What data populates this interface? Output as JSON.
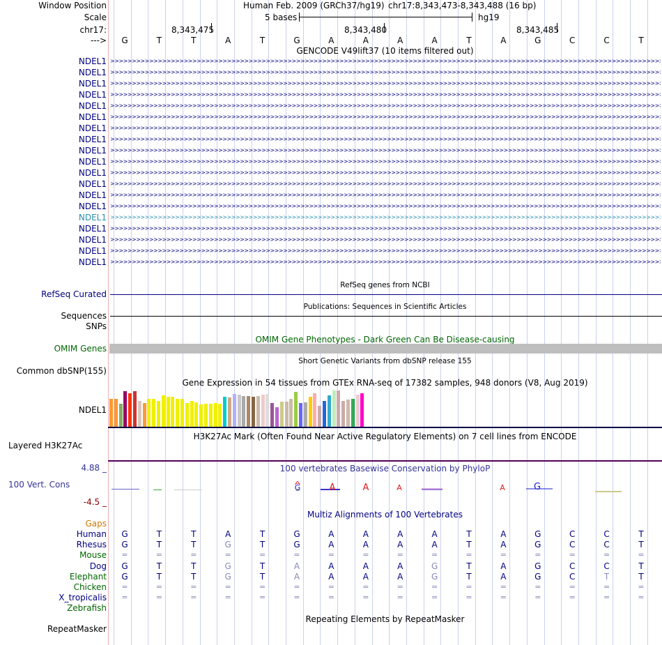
{
  "header": {
    "window_position_label": "Window Position",
    "assembly_text": "Human Feb. 2009 (GRCh37/hg19)",
    "position_text": "chr17:8,343,473-8,343,488 (16 bp)",
    "scale_label": "Scale",
    "scale_text": "5 bases",
    "scale_db": "hg19",
    "chrom_label": "chr17:",
    "strand_label": "--->",
    "ruler_ticks": [
      "8,343,475",
      "8,343,480",
      "8,343,485"
    ]
  },
  "sequence": [
    "G",
    "T",
    "T",
    "A",
    "T",
    "G",
    "A",
    "A",
    "A",
    "A",
    "T",
    "A",
    "G",
    "C",
    "C",
    "T"
  ],
  "gencode": {
    "title": "GENCODE V49lift37 (10 items filtered out)",
    "genes": [
      "NDEL1",
      "NDEL1",
      "NDEL1",
      "NDEL1",
      "NDEL1",
      "NDEL1",
      "NDEL1",
      "NDEL1",
      "NDEL1",
      "NDEL1",
      "NDEL1",
      "NDEL1",
      "NDEL1",
      "NDEL1",
      "NDEL1",
      "NDEL1",
      "NDEL1",
      "NDEL1",
      "NDEL1"
    ],
    "highlight_index": 14
  },
  "refseq": {
    "title": "RefSeq genes from NCBI",
    "label": "RefSeq Curated"
  },
  "publications": {
    "title": "Publications: Sequences in Scientific Articles",
    "label1": "Sequences",
    "label2": "SNPs"
  },
  "omim": {
    "title": "OMIM Gene Phenotypes - Dark Green Can Be Disease-causing",
    "label": "OMIM Genes"
  },
  "dbsnp": {
    "title": "Short Genetic Variants from dbSNP release 155",
    "label": "Common dbSNP(155)"
  },
  "gtex": {
    "title": "Gene Expression in 54 tissues from GTEx RNA-seq of 17382 samples, 948 donors (V8, Aug 2019)",
    "label": "NDEL1",
    "values": [
      0.72,
      0.72,
      0.6,
      0.92,
      0.88,
      0.92,
      0.68,
      0.62,
      0.72,
      0.72,
      0.68,
      0.82,
      0.78,
      0.78,
      0.72,
      0.72,
      0.62,
      0.68,
      0.64,
      0.58,
      0.6,
      0.6,
      0.62,
      0.6,
      0.78,
      0.76,
      0.86,
      0.84,
      0.8,
      0.8,
      0.78,
      0.8,
      0.84,
      0.86,
      0.62,
      0.5,
      0.66,
      0.66,
      0.72,
      0.9,
      0.62,
      0.64,
      0.78,
      0.88,
      0.54,
      0.68,
      0.82,
      0.94,
      0.94,
      0.68,
      0.7,
      0.72,
      0.84,
      0.88
    ],
    "colors": [
      "#ff9933",
      "#ff9933",
      "#88aa66",
      "#990066",
      "#ff3300",
      "#cc3333",
      "#d6c8b8",
      "#ff9933",
      "#f0f000",
      "#f0f000",
      "#f0f000",
      "#f0f000",
      "#f0f000",
      "#f0f000",
      "#f0f000",
      "#f0f000",
      "#f0f000",
      "#f0f000",
      "#f0f000",
      "#f0f000",
      "#f0f000",
      "#f0f000",
      "#f0f000",
      "#f0f000",
      "#00cccc",
      "#ccaa88",
      "#b0b0ff",
      "#c8c8c8",
      "#aaaaaa",
      "#aa8866",
      "#886644",
      "#ccbbaa",
      "#eecccc",
      "#dddddd",
      "#995599",
      "#bb66cc",
      "#cccc88",
      "#ccbbaa",
      "#ccbbaa",
      "#99cc44",
      "#6666ff",
      "#aaaaaa",
      "#ffcc00",
      "#ffaaaa",
      "#ccaaaa",
      "#2266dd",
      "#33aacc",
      "#bbeebb",
      "#ccaaaa",
      "#ccaaaa",
      "#ccbbaa",
      "#33aa55",
      "#eecccc",
      "#ff00cc"
    ]
  },
  "h3k27ac": {
    "title": "H3K27Ac Mark (Often Found Near Active Regulatory Elements) on 7 cell lines from ENCODE",
    "label": "Layered H3K27Ac"
  },
  "phylop": {
    "title": "100 vertebrates Basewise Conservation by PhyloP",
    "label": "100 Vert. Cons",
    "max": "4.88 _",
    "min": "-4.5 _"
  },
  "multiz": {
    "title": "Multiz Alignments of 100 Vertebrates",
    "gaps_label": "Gaps",
    "species": [
      {
        "name": "Human",
        "bases": "GTTATGAAAATAGCCT"
      },
      {
        "name": "Rhesus",
        "bases": "GTTGTGAAAATAGCCT"
      },
      {
        "name": "Mouse",
        "bases": "================"
      },
      {
        "name": "Dog",
        "bases": "GTTGTAAAAGTAGCCT"
      },
      {
        "name": "Elephant",
        "bases": "GTTGTAAAAGTAGCTT"
      },
      {
        "name": "Chicken",
        "bases": "================"
      },
      {
        "name": "X_tropicalis",
        "bases": "================"
      },
      {
        "name": "Zebrafish",
        "bases": ""
      }
    ]
  },
  "repeatmasker": {
    "title": "Repeating Elements by RepeatMasker",
    "label": "RepeatMasker"
  },
  "colors": {
    "gene": "#000080",
    "highlight": "#2a8fb0",
    "omim": "#006600",
    "h3k27ac": "#550055",
    "phylop": "#333399",
    "min": "#880000",
    "gaps": "#cc7700"
  }
}
